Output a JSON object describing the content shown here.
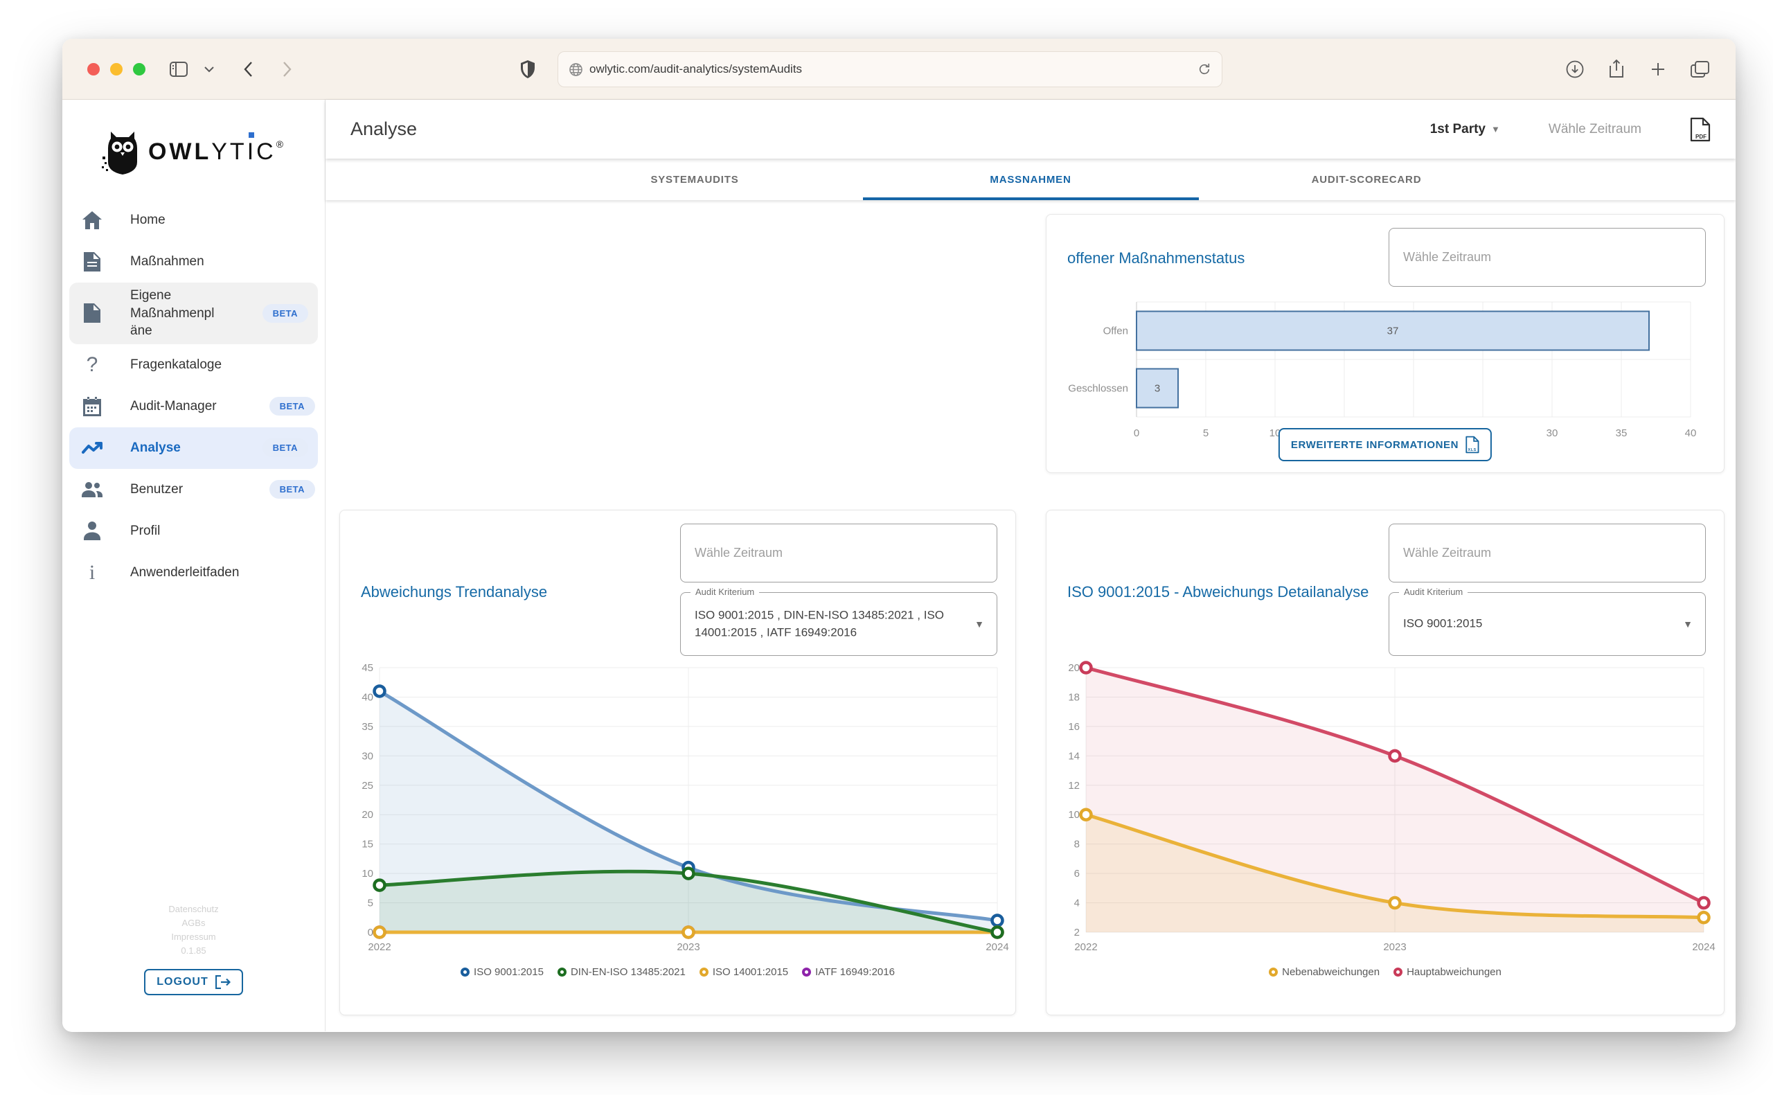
{
  "browser": {
    "url": "owlytic.com/audit-analytics/systemAudits"
  },
  "header": {
    "title": "Analyse",
    "party_selector": "1st Party",
    "time_range_label": "Wähle Zeitraum"
  },
  "tabs": [
    {
      "label": "SYSTEMAUDITS"
    },
    {
      "label": "MASSNAHMEN"
    },
    {
      "label": "AUDIT-SCORECARD"
    }
  ],
  "sidebar": {
    "logo_text_bold": "OWL",
    "logo_text_light1": "YT",
    "logo_text_i": "I",
    "logo_text_light2": "C",
    "logo_reg": "®",
    "items": [
      {
        "label": "Home"
      },
      {
        "label": "Maßnahmen"
      },
      {
        "label": "Eigene Maßnahmenpläne",
        "badge": "BETA"
      },
      {
        "label": "Fragenkataloge"
      },
      {
        "label": "Audit-Manager",
        "badge": "BETA"
      },
      {
        "label": "Analyse",
        "badge": "BETA"
      },
      {
        "label": "Benutzer",
        "badge": "BETA"
      },
      {
        "label": "Profil"
      },
      {
        "label": "Anwenderleitfaden"
      }
    ],
    "footer_links": [
      "Datenschutz",
      "AGBs",
      "Impressum",
      "0.1.85"
    ],
    "logout_label": "LOGOUT"
  },
  "panels": {
    "status": {
      "title": "offener Maßnahmenstatus",
      "time_placeholder": "Wähle Zeitraum",
      "button_label": "ERWEITERTE INFORMATIONEN"
    },
    "trend": {
      "title": "Abweichungs Trendanalyse",
      "time_placeholder": "Wähle Zeitraum",
      "criteria_label": "Audit Kriterium",
      "criteria_value": "ISO 9001:2015 , DIN-EN-ISO 13485:2021 , ISO 14001:2015 , IATF 16949:2016"
    },
    "detail": {
      "title": "ISO 9001:2015 - Abweichungs Detailanalyse",
      "time_placeholder": "Wähle Zeitraum",
      "criteria_label": "Audit Kriterium",
      "criteria_value": "ISO 9001:2015"
    }
  },
  "colors": {
    "accent_blue": "#17669f",
    "tab_active": "#1565a7",
    "nav_active": "#1a6ac0",
    "beta_bg": "#e5ecf9",
    "beta_text": "#2e6fce",
    "toolbar_bg": "#f7f1ea"
  },
  "chart_data": [
    {
      "id": "status_bar",
      "type": "bar",
      "orientation": "horizontal",
      "title": "offener Maßnahmenstatus",
      "categories": [
        "Offen",
        "Geschlossen"
      ],
      "values": [
        37,
        3
      ],
      "xlim": [
        0,
        40
      ],
      "xticks": [
        0,
        5,
        10,
        15,
        20,
        25,
        30,
        35,
        40
      ],
      "grid": true,
      "bar_fill": "#cfdff2",
      "bar_border": "#44719f",
      "value_label_color": "#5c5c5c"
    },
    {
      "id": "trend_lines",
      "type": "line",
      "title": "Abweichungs Trendanalyse",
      "x": [
        "2022",
        "2023",
        "2024"
      ],
      "ylim": [
        0,
        45
      ],
      "ytick_step": 5,
      "grid": true,
      "legend_position": "bottom",
      "draw_order": [
        0,
        3,
        2,
        1
      ],
      "series": [
        {
          "name": "ISO 9001:2015",
          "values": [
            41,
            11,
            2
          ],
          "line": "#6d99c8",
          "marker": "#1a5e9d",
          "area": "rgba(109,153,200,0.14)"
        },
        {
          "name": "DIN-EN-ISO 13485:2021",
          "values": [
            8,
            10,
            0
          ],
          "line": "#2a7d2e",
          "marker": "#1d6e21",
          "area": "rgba(42,125,46,0.10)"
        },
        {
          "name": "ISO 14001:2015",
          "values": [
            0,
            0,
            0
          ],
          "line": "#eab239",
          "marker": "#e2a82b",
          "area": "rgba(234,178,57,0)"
        },
        {
          "name": "IATF 16949:2016",
          "values": [
            0,
            0,
            0
          ],
          "line": "#9c27b0",
          "marker": "#8e24aa",
          "area": "rgba(156,39,176,0)"
        }
      ]
    },
    {
      "id": "detail_lines",
      "type": "line",
      "title": "ISO 9001:2015 - Abweichungs Detailanalyse",
      "x": [
        "2022",
        "2023",
        "2024"
      ],
      "ylim": [
        2,
        20
      ],
      "ytick_step": 2,
      "grid": true,
      "legend_position": "bottom",
      "draw_order": [
        1,
        0
      ],
      "series": [
        {
          "name": "Nebenabweichungen",
          "values": [
            10,
            4,
            3
          ],
          "line": "#eab239",
          "marker": "#e2a82b",
          "area": "rgba(234,178,57,0.13)"
        },
        {
          "name": "Hauptabweichungen",
          "values": [
            20,
            14,
            4
          ],
          "line": "#d24a66",
          "marker": "#c93b59",
          "area": "rgba(210,74,102,0.09)"
        }
      ]
    }
  ]
}
